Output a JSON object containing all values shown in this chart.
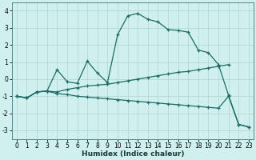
{
  "xlabel": "Humidex (Indice chaleur)",
  "bg_color": "#cff0ee",
  "grid_color": "#b0d4d0",
  "line_color": "#1e6b65",
  "xlim": [
    -0.5,
    23.5
  ],
  "ylim": [
    -3.5,
    4.5
  ],
  "yticks": [
    -3,
    -2,
    -1,
    0,
    1,
    2,
    3,
    4
  ],
  "xticks": [
    0,
    1,
    2,
    3,
    4,
    5,
    6,
    7,
    8,
    9,
    10,
    11,
    12,
    13,
    14,
    15,
    16,
    17,
    18,
    19,
    20,
    21,
    22,
    23
  ],
  "line_A_x": [
    0,
    1,
    2,
    3,
    4,
    5,
    6,
    7,
    8,
    9,
    10,
    11,
    12,
    13,
    14,
    15,
    16,
    17,
    18,
    19,
    20,
    21,
    22,
    23
  ],
  "line_A_y": [
    -1.0,
    -1.1,
    -0.75,
    -0.7,
    0.55,
    -0.15,
    -0.25,
    1.05,
    0.35,
    -0.2,
    2.6,
    3.7,
    3.85,
    3.5,
    3.35,
    2.9,
    2.85,
    2.75,
    1.7,
    1.55,
    0.85,
    -0.95,
    -2.65,
    -2.8
  ],
  "line_B_x": [
    0,
    1,
    2,
    3,
    4,
    5,
    6,
    7,
    8,
    9,
    10,
    11,
    12,
    13,
    14,
    15,
    16,
    17,
    18,
    19,
    20,
    21
  ],
  "line_B_y": [
    -1.0,
    -1.1,
    -0.75,
    -0.7,
    -0.75,
    -0.6,
    -0.5,
    -0.4,
    -0.35,
    -0.3,
    -0.2,
    -0.1,
    0.0,
    0.1,
    0.2,
    0.3,
    0.4,
    0.45,
    0.55,
    0.65,
    0.75,
    0.85
  ],
  "line_C_x": [
    0,
    1,
    2,
    3,
    4,
    5,
    6,
    7,
    8,
    9,
    10,
    11,
    12,
    13,
    14,
    15,
    16,
    17,
    18,
    19,
    20,
    21,
    22,
    23
  ],
  "line_C_y": [
    -1.0,
    -1.1,
    -0.75,
    -0.7,
    -0.85,
    -0.9,
    -1.0,
    -1.05,
    -1.1,
    -1.15,
    -1.2,
    -1.25,
    -1.3,
    -1.35,
    -1.4,
    -1.45,
    -1.5,
    -1.55,
    -1.6,
    -1.65,
    -1.7,
    -1.0,
    -2.65,
    -2.8
  ]
}
